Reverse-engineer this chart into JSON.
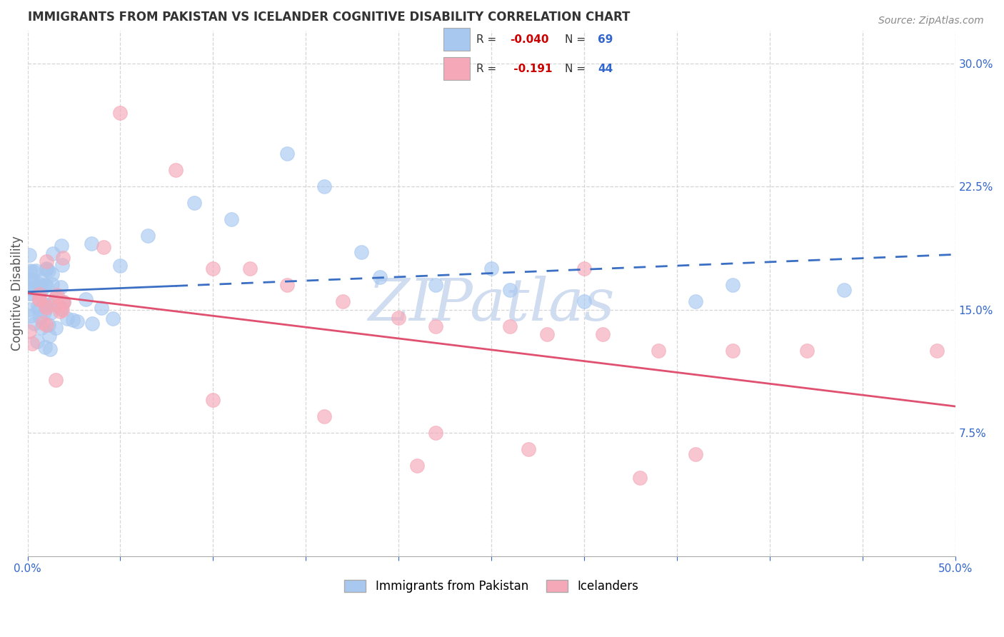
{
  "title": "IMMIGRANTS FROM PAKISTAN VS ICELANDER COGNITIVE DISABILITY CORRELATION CHART",
  "source": "Source: ZipAtlas.com",
  "ylabel": "Cognitive Disability",
  "xlim": [
    0.0,
    0.5
  ],
  "ylim": [
    0.0,
    0.32
  ],
  "xtick_positions": [
    0.0,
    0.05,
    0.1,
    0.15,
    0.2,
    0.25,
    0.3,
    0.35,
    0.4,
    0.45,
    0.5
  ],
  "xticklabels_show": {
    "0.0": "0.0%",
    "0.5": "50.0%"
  },
  "yticks_right": [
    0.075,
    0.15,
    0.225,
    0.3
  ],
  "ytick_labels_right": [
    "7.5%",
    "15.0%",
    "22.5%",
    "30.0%"
  ],
  "series1_color": "#A8C8F0",
  "series2_color": "#F5A8B8",
  "series1_label": "Immigrants from Pakistan",
  "series2_label": "Icelanders",
  "series1_R": "-0.040",
  "series2_R": "-0.191",
  "series1_N": "69",
  "series2_N": "44",
  "trend1_color": "#3B6FC4",
  "trend2_color": "#E05070",
  "watermark_color": "#D0DCF0",
  "grid_color": "#CCCCCC",
  "title_color": "#333333",
  "ylabel_color": "#555555",
  "right_tick_color": "#3366CC",
  "bottom_tick_color": "#3366CC",
  "legend_r_color": "#CC0000",
  "legend_n_color": "#3366CC",
  "legend_text_color": "#333333",
  "source_color": "#888888"
}
